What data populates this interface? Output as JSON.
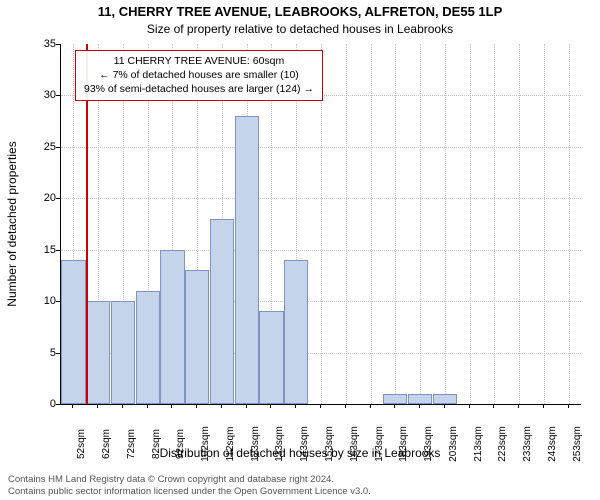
{
  "title_line1": "11, CHERRY TREE AVENUE, LEABROOKS, ALFRETON, DE55 1LP",
  "title_line2": "Size of property relative to detached houses in Leabrooks",
  "ylabel": "Number of detached properties",
  "xlabel": "Distribution of detached houses by size in Leabrooks",
  "chart": {
    "type": "histogram",
    "x_categories": [
      "52sqm",
      "62sqm",
      "72sqm",
      "82sqm",
      "92sqm",
      "102sqm",
      "112sqm",
      "123sqm",
      "133sqm",
      "143sqm",
      "153sqm",
      "163sqm",
      "173sqm",
      "183sqm",
      "193sqm",
      "203sqm",
      "213sqm",
      "223sqm",
      "233sqm",
      "243sqm",
      "253sqm"
    ],
    "values": [
      14,
      10,
      10,
      11,
      15,
      13,
      18,
      28,
      9,
      14,
      0,
      0,
      0,
      1,
      1,
      1,
      0,
      0,
      0,
      0,
      0
    ],
    "ylim": [
      0,
      35
    ],
    "ytick_step": 5,
    "bar_fill": "#c6d4eb",
    "bar_stroke": "#7f94bf",
    "grid_color": "#c8c8c8",
    "background": "#ffffff",
    "marker_x_index": 1,
    "marker_color": "#cc0000"
  },
  "annotation": {
    "line1": "11 CHERRY TREE AVENUE: 60sqm",
    "line2": "← 7% of detached houses are smaller (10)",
    "line3": "93% of semi-detached houses are larger (124) →",
    "border_color": "#cc0000"
  },
  "footer_line1": "Contains HM Land Registry data © Crown copyright and database right 2024.",
  "footer_line2": "Contains public sector information licensed under the Open Government Licence v3.0."
}
